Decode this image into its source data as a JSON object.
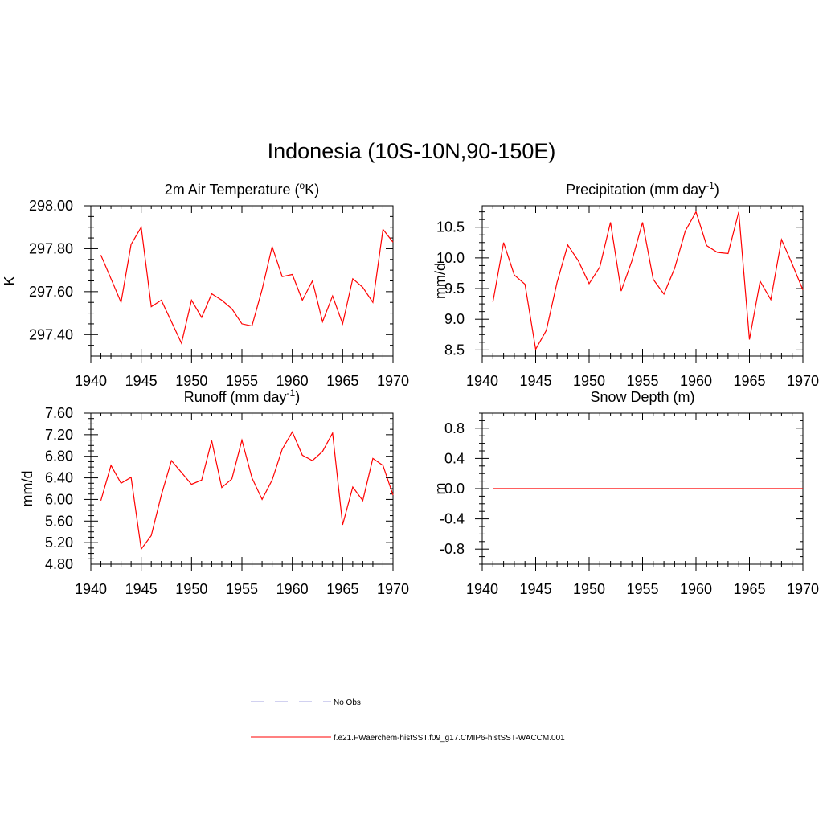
{
  "figure": {
    "title": "Indonesia (10S-10N,90-150E)"
  },
  "legend": {
    "entries": [
      {
        "label": "No Obs",
        "color": "#a3a3e0",
        "dash": true
      },
      {
        "label": "f.e21.FWaerchem-histSST.f09_g17.CMIP6-histSST-WACCM.001",
        "color": "#ff0000",
        "dash": false
      }
    ]
  },
  "chart_data": [
    {
      "type": "line",
      "title": "2m Air Temperature (oK)",
      "title_parts": [
        "2m Air Temperature (",
        "o",
        "K)"
      ],
      "ylabel": "K",
      "xlim": [
        1940,
        1970
      ],
      "ylim": [
        297.3,
        298.0
      ],
      "xticks": [
        1940,
        1945,
        1950,
        1955,
        1960,
        1965,
        1970
      ],
      "yticks": [
        "298.00",
        "297.80",
        "297.60",
        "297.40"
      ],
      "ytick_values": [
        298.0,
        297.8,
        297.6,
        297.4
      ],
      "series": [
        {
          "color": "#ff0000",
          "x": [
            1941,
            1942,
            1943,
            1944,
            1945,
            1946,
            1947,
            1948,
            1949,
            1950,
            1951,
            1952,
            1953,
            1954,
            1955,
            1956,
            1957,
            1958,
            1959,
            1960,
            1961,
            1962,
            1963,
            1964,
            1965,
            1966,
            1967,
            1968,
            1969,
            1970
          ],
          "values": [
            297.77,
            297.66,
            297.55,
            297.82,
            297.9,
            297.53,
            297.56,
            297.46,
            297.36,
            297.56,
            297.48,
            297.59,
            297.56,
            297.52,
            297.45,
            297.44,
            297.61,
            297.81,
            297.67,
            297.68,
            297.56,
            297.65,
            297.46,
            297.58,
            297.45,
            297.66,
            297.62,
            297.55,
            297.89,
            297.83
          ]
        }
      ]
    },
    {
      "type": "line",
      "title": "Precipitation (mm day-1)",
      "title_parts": [
        "Precipitation (mm day",
        "-1",
        ")"
      ],
      "ylabel": "mm/d",
      "xlim": [
        1940,
        1970
      ],
      "ylim": [
        8.4,
        10.85
      ],
      "xticks": [
        1940,
        1945,
        1950,
        1955,
        1960,
        1965,
        1970
      ],
      "yticks": [
        "10.5",
        "10.0",
        "9.5",
        "9.0",
        "8.5"
      ],
      "ytick_values": [
        10.5,
        10.0,
        9.5,
        9.0,
        8.5
      ],
      "series": [
        {
          "color": "#ff0000",
          "x": [
            1941,
            1942,
            1943,
            1944,
            1945,
            1946,
            1947,
            1948,
            1949,
            1950,
            1951,
            1952,
            1953,
            1954,
            1955,
            1956,
            1957,
            1958,
            1959,
            1960,
            1961,
            1962,
            1963,
            1964,
            1965,
            1966,
            1967,
            1968,
            1969,
            1970
          ],
          "values": [
            9.28,
            10.25,
            9.72,
            9.57,
            8.51,
            8.82,
            9.6,
            10.21,
            9.95,
            9.58,
            9.85,
            10.58,
            9.46,
            9.95,
            10.58,
            9.65,
            9.41,
            9.83,
            10.44,
            10.75,
            10.2,
            10.09,
            10.07,
            10.75,
            8.67,
            9.62,
            9.32,
            10.3,
            9.9,
            9.48
          ]
        }
      ]
    },
    {
      "type": "line",
      "title": "Runoff (mm day-1)",
      "title_parts": [
        "Runoff (mm day",
        "-1",
        ")"
      ],
      "ylabel": "mm/d",
      "xlim": [
        1940,
        1970
      ],
      "ylim": [
        4.8,
        7.6
      ],
      "xticks": [
        1940,
        1945,
        1950,
        1955,
        1960,
        1965,
        1970
      ],
      "yticks": [
        "7.60",
        "7.20",
        "6.80",
        "6.40",
        "6.00",
        "5.60",
        "5.20",
        "4.80"
      ],
      "ytick_values": [
        7.6,
        7.2,
        6.8,
        6.4,
        6.0,
        5.6,
        5.2,
        4.8
      ],
      "series": [
        {
          "color": "#ff0000",
          "x": [
            1941,
            1942,
            1943,
            1944,
            1945,
            1946,
            1947,
            1948,
            1949,
            1950,
            1951,
            1952,
            1953,
            1954,
            1955,
            1956,
            1957,
            1958,
            1959,
            1960,
            1961,
            1962,
            1963,
            1964,
            1965,
            1966,
            1967,
            1968,
            1969,
            1970
          ],
          "values": [
            5.98,
            6.63,
            6.3,
            6.41,
            5.08,
            5.33,
            6.08,
            6.72,
            6.5,
            6.28,
            6.36,
            7.09,
            6.22,
            6.38,
            7.1,
            6.4,
            6.0,
            6.36,
            6.93,
            7.25,
            6.82,
            6.72,
            6.89,
            7.23,
            5.53,
            6.23,
            5.98,
            6.76,
            6.63,
            6.08
          ]
        }
      ]
    },
    {
      "type": "line",
      "title": "Snow Depth (m)",
      "title_parts": [
        "Snow Depth (m)",
        "",
        ""
      ],
      "ylabel": "m",
      "xlim": [
        1940,
        1970
      ],
      "ylim": [
        -1.0,
        1.0
      ],
      "xticks": [
        1940,
        1945,
        1950,
        1955,
        1960,
        1965,
        1970
      ],
      "yticks": [
        "0.8",
        "0.4",
        "0.0",
        "-0.4",
        "-0.8"
      ],
      "ytick_values": [
        0.8,
        0.4,
        0.0,
        -0.4,
        -0.8
      ],
      "series": [
        {
          "color": "#ff0000",
          "x": [
            1941,
            1970
          ],
          "values": [
            0.0,
            0.0
          ]
        }
      ]
    }
  ]
}
